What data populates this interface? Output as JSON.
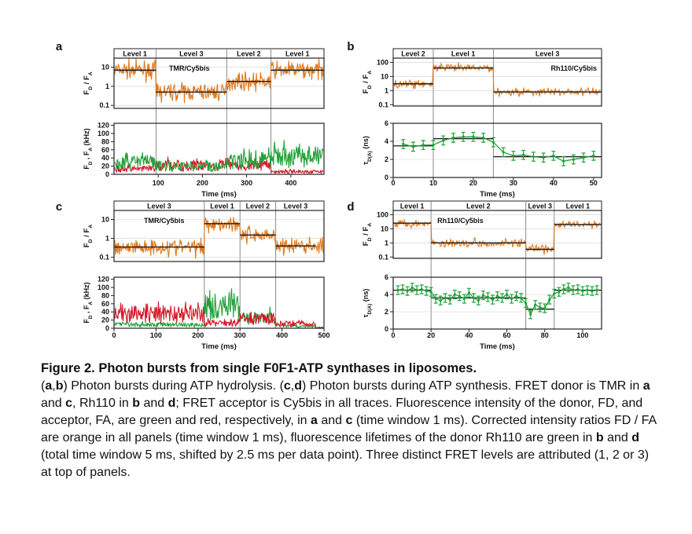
{
  "colors": {
    "orange": "#e07a1f",
    "green": "#21a038",
    "red": "#d6182a",
    "fit": "#1a1a1a",
    "grid": "#cfcfcf"
  },
  "chart_data": [
    {
      "panel": "a",
      "type": "line",
      "levels": [
        {
          "label": "Level 1",
          "x0": 0,
          "x1": 95
        },
        {
          "label": "Level 3",
          "x0": 95,
          "x1": 255
        },
        {
          "label": "Level 2",
          "x0": 255,
          "x1": 355
        },
        {
          "label": "Level 1",
          "x0": 355,
          "x1": 475
        }
      ],
      "xlim": [
        0,
        475
      ],
      "xticks": [
        "100",
        "200",
        "300",
        "400"
      ],
      "xtick_values": [
        100,
        200,
        300,
        400
      ],
      "xlabel": "Time (ms)",
      "top": {
        "label_text": "TMR/Cy5bis",
        "ylabel": "F_D / F_A",
        "yscale": "log",
        "ylim": [
          0.07,
          30
        ],
        "yticks": [
          "0.1",
          "1",
          "10"
        ],
        "ytick_values": [
          0.1,
          1,
          10
        ],
        "fit": [
          {
            "x0": 0,
            "x1": 95,
            "y": 7
          },
          {
            "x0": 95,
            "x1": 255,
            "y": 0.5
          },
          {
            "x0": 255,
            "x1": 355,
            "y": 1.8
          },
          {
            "x0": 355,
            "x1": 475,
            "y": 7
          }
        ],
        "series": {
          "name": "",
          "color": "#e07a1f",
          "noise": 0.45
        }
      },
      "bottom": {
        "ylabel": "F_D , F_A (kHz)",
        "ylim": [
          0,
          125
        ],
        "yticks": [
          "0",
          "20",
          "40",
          "60",
          "80",
          "100",
          "120"
        ],
        "ytick_values": [
          0,
          20,
          40,
          60,
          80,
          100,
          120
        ],
        "series": [
          {
            "name": "",
            "color": "#d6182a",
            "segments": [
              {
                "x0": 0,
                "x1": 95,
                "mean": 12
              },
              {
                "x0": 95,
                "x1": 255,
                "mean": 20
              },
              {
                "x0": 255,
                "x1": 355,
                "mean": 20
              },
              {
                "x0": 355,
                "x1": 475,
                "mean": 6
              }
            ]
          },
          {
            "name": "",
            "color": "#21a038",
            "segments": [
              {
                "x0": 0,
                "x1": 95,
                "mean": 28
              },
              {
                "x0": 95,
                "x1": 255,
                "mean": 18
              },
              {
                "x0": 255,
                "x1": 355,
                "mean": 30
              },
              {
                "x0": 355,
                "x1": 475,
                "mean": 40
              }
            ]
          }
        ]
      }
    },
    {
      "panel": "b",
      "type": "line",
      "levels": [
        {
          "label": "Level 2",
          "x0": 0,
          "x1": 10
        },
        {
          "label": "Level 1",
          "x0": 10,
          "x1": 25
        },
        {
          "label": "Level 3",
          "x0": 25,
          "x1": 52
        }
      ],
      "xlim": [
        0,
        52
      ],
      "xticks": [
        "0",
        "10",
        "20",
        "30",
        "40",
        "50"
      ],
      "xtick_values": [
        0,
        10,
        20,
        30,
        40,
        50
      ],
      "xlabel": "Time (ms)",
      "top": {
        "label_text": "Rh110/Cy5bis",
        "ylabel": "F_D / F_A",
        "yscale": "log",
        "ylim": [
          0.08,
          200
        ],
        "yticks": [
          "0.1",
          "1",
          "10",
          "100"
        ],
        "ytick_values": [
          0.1,
          1,
          10,
          100
        ],
        "fit": [
          {
            "x0": 0,
            "x1": 10,
            "y": 3
          },
          {
            "x0": 10,
            "x1": 25,
            "y": 40
          },
          {
            "x0": 25,
            "x1": 52,
            "y": 0.8
          }
        ],
        "series": {
          "name": "",
          "color": "#e07a1f",
          "noise": 0.3
        }
      },
      "bottom": {
        "ylabel": "τ_D(A) (ns)",
        "ylim": [
          0,
          6
        ],
        "yticks": [
          "0",
          "2",
          "4",
          "6"
        ],
        "ytick_values": [
          0,
          2,
          4,
          6
        ],
        "fit": [
          {
            "x0": 0,
            "x1": 10,
            "y": 3.5
          },
          {
            "x0": 10,
            "x1": 25,
            "y": 4.3
          },
          {
            "x0": 25,
            "x1": 52,
            "y": 2.3
          }
        ],
        "points": [
          [
            2.5,
            3.7
          ],
          [
            5,
            3.4
          ],
          [
            7.5,
            3.6
          ],
          [
            10,
            3.6
          ],
          [
            12.5,
            4.1
          ],
          [
            15,
            4.4
          ],
          [
            17.5,
            4.5
          ],
          [
            20,
            4.5
          ],
          [
            22.5,
            4.4
          ],
          [
            25,
            3.9
          ],
          [
            27.5,
            2.8
          ],
          [
            30,
            2.4
          ],
          [
            32.5,
            2.5
          ],
          [
            35,
            2.3
          ],
          [
            37.5,
            2.2
          ],
          [
            40,
            2.4
          ],
          [
            42.5,
            1.8
          ],
          [
            45,
            2.0
          ],
          [
            47.5,
            2.2
          ],
          [
            50,
            2.4
          ]
        ],
        "err": 0.5,
        "color": "#21a038"
      }
    },
    {
      "panel": "c",
      "type": "line",
      "levels": [
        {
          "label": "Level 3",
          "x0": 0,
          "x1": 215
        },
        {
          "label": "Level 1",
          "x0": 215,
          "x1": 300
        },
        {
          "label": "Level 2",
          "x0": 300,
          "x1": 385
        },
        {
          "label": "Level 3",
          "x0": 385,
          "x1": 480
        }
      ],
      "xlim": [
        0,
        500
      ],
      "xticks": [
        "0",
        "100",
        "200",
        "300",
        "400",
        "500"
      ],
      "xtick_values": [
        0,
        100,
        200,
        300,
        400,
        500
      ],
      "xlabel": "Time (ms)",
      "top": {
        "label_text": "TMR/Cy5bis",
        "ylabel": "F_D / F_A",
        "yscale": "log",
        "ylim": [
          0.06,
          30
        ],
        "yticks": [
          "0.1",
          "1",
          "10"
        ],
        "ytick_values": [
          0.1,
          1,
          10
        ],
        "fit": [
          {
            "x0": 0,
            "x1": 215,
            "y": 0.35
          },
          {
            "x0": 215,
            "x1": 300,
            "y": 6
          },
          {
            "x0": 300,
            "x1": 385,
            "y": 1.5
          },
          {
            "x0": 385,
            "x1": 480,
            "y": 0.4
          }
        ],
        "series": {
          "name": "",
          "color": "#e07a1f",
          "noise": 0.45
        }
      },
      "bottom": {
        "ylabel": "F_D , F_A (kHz)",
        "ylim": [
          0,
          125
        ],
        "yticks": [
          "0",
          "20",
          "40",
          "60",
          "80",
          "100",
          "120"
        ],
        "ytick_values": [
          0,
          20,
          40,
          60,
          80,
          100,
          120
        ],
        "series": [
          {
            "name": "",
            "color": "#21a038",
            "segments": [
              {
                "x0": 0,
                "x1": 215,
                "mean": 8
              },
              {
                "x0": 215,
                "x1": 300,
                "mean": 50
              },
              {
                "x0": 300,
                "x1": 385,
                "mean": 22
              },
              {
                "x0": 385,
                "x1": 480,
                "mean": 5
              }
            ]
          },
          {
            "name": "",
            "color": "#d6182a",
            "segments": [
              {
                "x0": 0,
                "x1": 215,
                "mean": 32
              },
              {
                "x0": 215,
                "x1": 300,
                "mean": 12
              },
              {
                "x0": 300,
                "x1": 385,
                "mean": 22
              },
              {
                "x0": 385,
                "x1": 480,
                "mean": 10
              }
            ]
          }
        ]
      }
    },
    {
      "panel": "d",
      "type": "line",
      "levels": [
        {
          "label": "Level 1",
          "x0": 0,
          "x1": 20
        },
        {
          "label": "Level 2",
          "x0": 20,
          "x1": 70
        },
        {
          "label": "Level 3",
          "x0": 70,
          "x1": 85
        },
        {
          "label": "Level 1",
          "x0": 85,
          "x1": 110
        }
      ],
      "xlim": [
        0,
        110
      ],
      "xticks": [
        "0",
        "20",
        "40",
        "60",
        "80",
        "100"
      ],
      "xtick_values": [
        0,
        20,
        40,
        60,
        80,
        100
      ],
      "xlabel": "Time (ms)",
      "top": {
        "label_text": "Rh110/Cy5bis",
        "ylabel": "F_D / F_A",
        "yscale": "log",
        "ylim": [
          0.08,
          200
        ],
        "yticks": [
          "0.1",
          "1",
          "10",
          "100"
        ],
        "ytick_values": [
          0.1,
          1,
          10,
          100
        ],
        "fit": [
          {
            "x0": 0,
            "x1": 20,
            "y": 25
          },
          {
            "x0": 20,
            "x1": 70,
            "y": 1
          },
          {
            "x0": 70,
            "x1": 85,
            "y": 0.35
          },
          {
            "x0": 85,
            "x1": 110,
            "y": 20
          }
        ],
        "series": {
          "name": "",
          "color": "#e07a1f",
          "noise": 0.3
        }
      },
      "bottom": {
        "ylabel": "τ_D(A) (ns)",
        "ylim": [
          0,
          6
        ],
        "yticks": [
          "0",
          "2",
          "4",
          "6"
        ],
        "ytick_values": [
          0,
          2,
          4,
          6
        ],
        "fit": [
          {
            "x0": 0,
            "x1": 20,
            "y": 4.5
          },
          {
            "x0": 20,
            "x1": 70,
            "y": 3.6
          },
          {
            "x0": 70,
            "x1": 85,
            "y": 2.3
          },
          {
            "x0": 85,
            "x1": 110,
            "y": 4.5
          }
        ],
        "points": [
          [
            2.5,
            4.5
          ],
          [
            5,
            4.6
          ],
          [
            7.5,
            4.4
          ],
          [
            10,
            4.8
          ],
          [
            12.5,
            4.5
          ],
          [
            15,
            4.6
          ],
          [
            17.5,
            4.4
          ],
          [
            20,
            4.3
          ],
          [
            22.5,
            3.5
          ],
          [
            25,
            3.3
          ],
          [
            27.5,
            3.6
          ],
          [
            30,
            3.4
          ],
          [
            32.5,
            4.0
          ],
          [
            35,
            3.8
          ],
          [
            37.5,
            3.5
          ],
          [
            40,
            4.2
          ],
          [
            42.5,
            3.6
          ],
          [
            45,
            3.3
          ],
          [
            47.5,
            3.9
          ],
          [
            50,
            3.7
          ],
          [
            52.5,
            3.4
          ],
          [
            55,
            3.8
          ],
          [
            57.5,
            3.6
          ],
          [
            60,
            4.0
          ],
          [
            62.5,
            3.5
          ],
          [
            65,
            3.8
          ],
          [
            67.5,
            3.6
          ],
          [
            70,
            3.0
          ],
          [
            72.5,
            1.7
          ],
          [
            75,
            2.8
          ],
          [
            77.5,
            2.5
          ],
          [
            80,
            2.4
          ],
          [
            82.5,
            3.4
          ],
          [
            85,
            4.1
          ],
          [
            87.5,
            4.3
          ],
          [
            90,
            4.6
          ],
          [
            92.5,
            4.8
          ],
          [
            95,
            4.5
          ],
          [
            97.5,
            4.6
          ],
          [
            100,
            4.4
          ],
          [
            102.5,
            4.5
          ],
          [
            105,
            4.4
          ],
          [
            107.5,
            4.5
          ]
        ],
        "err": 0.5,
        "color": "#21a038"
      }
    }
  ],
  "caption": {
    "title": "Figure 2. Photon bursts from single F0F1-ATP synthases in liposomes.",
    "parts": [
      {
        "t": "("
      },
      {
        "t": "a",
        "b": true
      },
      {
        "t": ","
      },
      {
        "t": "b",
        "b": true
      },
      {
        "t": ") Photon bursts during ATP hydrolysis. ("
      },
      {
        "t": "c",
        "b": true
      },
      {
        "t": ","
      },
      {
        "t": "d",
        "b": true
      },
      {
        "t": ") Photon bursts during ATP synthesis. FRET donor is TMR in "
      },
      {
        "t": "a",
        "b": true
      },
      {
        "t": " and "
      },
      {
        "t": "c",
        "b": true
      },
      {
        "t": ", Rh110 in "
      },
      {
        "t": "b",
        "b": true
      },
      {
        "t": " and "
      },
      {
        "t": "d",
        "b": true
      },
      {
        "t": "; FRET acceptor is Cy5bis in all traces. Fluorescence intensity of the donor, FD, and acceptor, FA, are green and red, respectively, in "
      },
      {
        "t": "a",
        "b": true
      },
      {
        "t": " and "
      },
      {
        "t": "c",
        "b": true
      },
      {
        "t": " (time window 1 ms). Corrected intensity ratios FD / FA are orange in all panels (time window 1 ms), fluorescence lifetimes of the donor Rh110 are green in "
      },
      {
        "t": "b",
        "b": true
      },
      {
        "t": " and "
      },
      {
        "t": "d",
        "b": true
      },
      {
        "t": " (total time window 5 ms, shifted by 2.5 ms per data point). Three distinct FRET levels are attributed (1, 2 or 3) at top of panels."
      }
    ]
  }
}
